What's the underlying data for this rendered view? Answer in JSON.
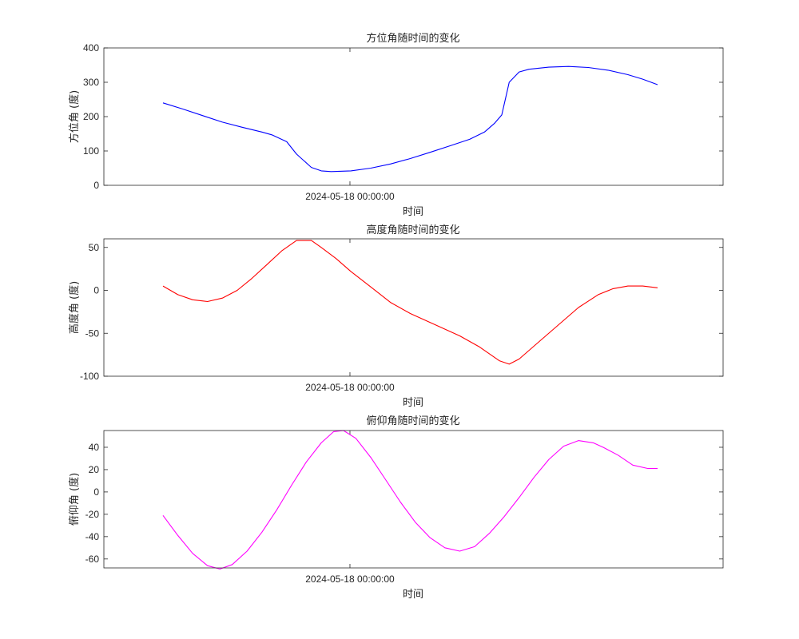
{
  "chart_data": [
    {
      "type": "line",
      "title": "方位角随时间的变化",
      "xlabel": "时间",
      "ylabel": "方位角 (度)",
      "xticks": [
        {
          "x": 0.378,
          "label": "2024-05-18 00:00:00"
        }
      ],
      "ylim": [
        0,
        400
      ],
      "yticks": [
        0,
        100,
        200,
        300,
        400
      ],
      "series": [
        {
          "color": "#0000ff",
          "x": [
            0,
            0.04,
            0.08,
            0.12,
            0.16,
            0.2,
            0.22,
            0.25,
            0.27,
            0.3,
            0.32,
            0.34,
            0.38,
            0.42,
            0.46,
            0.5,
            0.54,
            0.58,
            0.62,
            0.65,
            0.67,
            0.685,
            0.7,
            0.72,
            0.74,
            0.78,
            0.82,
            0.86,
            0.9,
            0.94,
            0.97,
            1.0
          ],
          "y": [
            240,
            222,
            203,
            184,
            169,
            155,
            147,
            127,
            91,
            52,
            42,
            40,
            42,
            50,
            62,
            78,
            96,
            115,
            134,
            155,
            180,
            205,
            300,
            330,
            338,
            344,
            346,
            343,
            335,
            322,
            309,
            293
          ]
        }
      ]
    },
    {
      "type": "line",
      "title": "高度角随时间的变化",
      "xlabel": "时间",
      "ylabel": "高度角 (度)",
      "xticks": [
        {
          "x": 0.378,
          "label": "2024-05-18 00:00:00"
        }
      ],
      "ylim": [
        -100,
        60
      ],
      "yticks": [
        -100,
        -50,
        0,
        50
      ],
      "series": [
        {
          "color": "#ff0000",
          "x": [
            0,
            0.03,
            0.06,
            0.09,
            0.12,
            0.15,
            0.18,
            0.21,
            0.24,
            0.27,
            0.3,
            0.32,
            0.35,
            0.38,
            0.42,
            0.46,
            0.5,
            0.55,
            0.6,
            0.64,
            0.68,
            0.7,
            0.72,
            0.76,
            0.8,
            0.84,
            0.88,
            0.91,
            0.94,
            0.97,
            1.0
          ],
          "y": [
            5,
            -5,
            -11,
            -13,
            -9,
            0,
            14,
            30,
            46,
            58,
            58,
            50,
            37,
            22,
            4,
            -14,
            -27,
            -40,
            -53,
            -66,
            -82,
            -86,
            -80,
            -60,
            -40,
            -20,
            -5,
            2,
            5,
            5,
            3
          ]
        }
      ]
    },
    {
      "type": "line",
      "title": "俯仰角随时间的变化",
      "xlabel": "时间",
      "ylabel": "俯仰角 (度)",
      "xticks": [
        {
          "x": 0.378,
          "label": "2024-05-18 00:00:00"
        }
      ],
      "ylim": [
        -68,
        55
      ],
      "yticks": [
        -60,
        -40,
        -20,
        0,
        20,
        40
      ],
      "series": [
        {
          "color": "#ff00ff",
          "x": [
            0,
            0.03,
            0.06,
            0.09,
            0.115,
            0.14,
            0.17,
            0.2,
            0.23,
            0.26,
            0.29,
            0.32,
            0.345,
            0.365,
            0.39,
            0.42,
            0.45,
            0.48,
            0.51,
            0.54,
            0.57,
            0.6,
            0.63,
            0.66,
            0.69,
            0.72,
            0.75,
            0.78,
            0.81,
            0.84,
            0.87,
            0.89,
            0.92,
            0.95,
            0.98,
            1.0
          ],
          "y": [
            -21,
            -39,
            -55,
            -66,
            -69,
            -65,
            -53,
            -36,
            -16,
            6,
            27,
            44,
            54,
            55,
            48,
            31,
            11,
            -9,
            -27,
            -41,
            -50,
            -53,
            -49,
            -37,
            -22,
            -5,
            13,
            29,
            41,
            46,
            44,
            40,
            33,
            24,
            21,
            21
          ]
        }
      ]
    }
  ]
}
